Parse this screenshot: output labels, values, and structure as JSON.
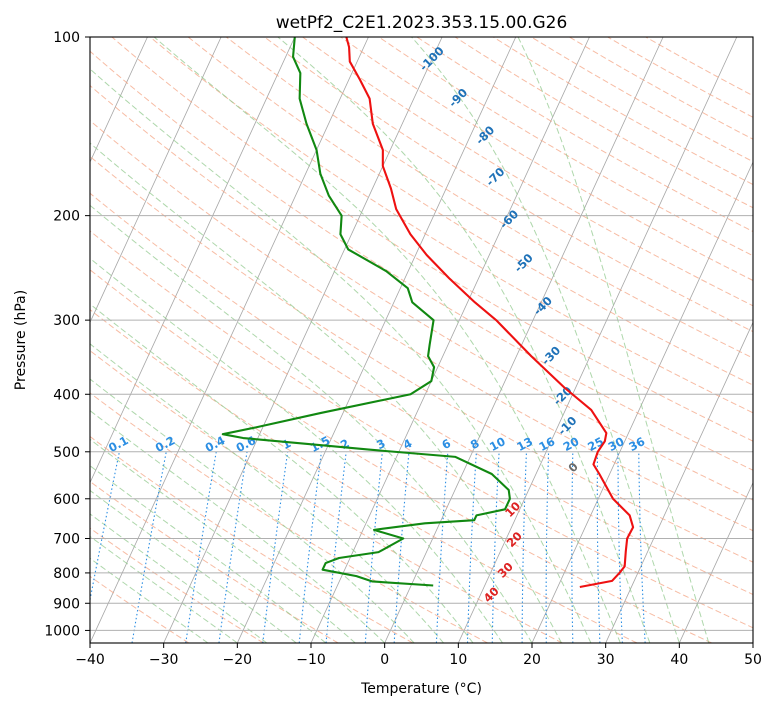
{
  "chart_data": {
    "type": "line",
    "title": "wetPf2_C2E1.2023.353.15.00.G26",
    "xlabel": "Temperature (°C)",
    "ylabel": "Pressure (hPa)",
    "xlim": [
      -40,
      50
    ],
    "ylim": [
      1050,
      100
    ],
    "y_scale": "log",
    "x_ticks": [
      "−40",
      "−30",
      "−20",
      "−10",
      "0",
      "10",
      "20",
      "30",
      "40",
      "50"
    ],
    "y_ticks": [
      1000,
      900,
      800,
      700,
      600,
      500,
      400,
      300,
      200,
      100
    ],
    "grid": true,
    "colors": {
      "temperature": "#ee1111",
      "dewpoint": "#118811",
      "dry_adiabat": "#f4a07e",
      "moist_adiabat": "#93c98f",
      "isotherm": "#888888",
      "mixing_ratio": "#2b8ee3",
      "dry_label": "#1f72b8",
      "mixing_label": "#2b8ee3",
      "moist_label": "#dd2222",
      "grid": "#b0b0b0"
    },
    "series": [
      {
        "key": "temperature",
        "points": [
          [
            23.0,
            845
          ],
          [
            27.0,
            825
          ],
          [
            27.5,
            800
          ],
          [
            27.8,
            780
          ],
          [
            27.0,
            735
          ],
          [
            26.4,
            700
          ],
          [
            26.5,
            670
          ],
          [
            25.3,
            640
          ],
          [
            22.0,
            600
          ],
          [
            18.6,
            545
          ],
          [
            17.2,
            525
          ],
          [
            17.0,
            500
          ],
          [
            17.3,
            480
          ],
          [
            17.0,
            465
          ],
          [
            13.5,
            425
          ],
          [
            8.5,
            390
          ],
          [
            2.0,
            345
          ],
          [
            -5.0,
            300
          ],
          [
            -9.0,
            280
          ],
          [
            -14.0,
            255
          ],
          [
            -18.5,
            233
          ],
          [
            -22.0,
            215
          ],
          [
            -25.5,
            195
          ],
          [
            -27.5,
            180
          ],
          [
            -30.0,
            165
          ],
          [
            -31.0,
            155
          ],
          [
            -34.0,
            140
          ],
          [
            -36.0,
            127
          ],
          [
            -38.5,
            118
          ],
          [
            -41.0,
            110
          ],
          [
            -42.0,
            104
          ],
          [
            -43.0,
            100
          ]
        ]
      },
      {
        "key": "dewpoint",
        "points": [
          [
            3.0,
            840
          ],
          [
            -5.5,
            827
          ],
          [
            -8.0,
            810
          ],
          [
            -13.0,
            790
          ],
          [
            -13.0,
            770
          ],
          [
            -11.5,
            755
          ],
          [
            -6.5,
            738
          ],
          [
            -4.0,
            700
          ],
          [
            -8.5,
            677
          ],
          [
            -2.0,
            660
          ],
          [
            4.5,
            652
          ],
          [
            4.5,
            640
          ],
          [
            8.0,
            625
          ],
          [
            8.0,
            600
          ],
          [
            7.3,
            580
          ],
          [
            4.0,
            545
          ],
          [
            -2.0,
            510
          ],
          [
            -14.0,
            496
          ],
          [
            -32.0,
            474
          ],
          [
            -35.0,
            467
          ],
          [
            -31.0,
            455
          ],
          [
            -23.0,
            430
          ],
          [
            -12.0,
            400
          ],
          [
            -10.0,
            380
          ],
          [
            -10.5,
            360
          ],
          [
            -12.0,
            345
          ],
          [
            -12.5,
            330
          ],
          [
            -13.5,
            300
          ],
          [
            -17.5,
            280
          ],
          [
            -19.0,
            265
          ],
          [
            -23.0,
            248
          ],
          [
            -29.5,
            228
          ],
          [
            -31.5,
            215
          ],
          [
            -32.5,
            200
          ],
          [
            -35.5,
            185
          ],
          [
            -38.0,
            170
          ],
          [
            -40.0,
            155
          ],
          [
            -43.0,
            140
          ],
          [
            -45.5,
            127
          ],
          [
            -47.0,
            115
          ],
          [
            -49.0,
            108
          ],
          [
            -50.0,
            100
          ]
        ]
      }
    ],
    "dry_adiabat_labels": [
      "-100",
      "-90",
      "-80",
      "-70",
      "-60",
      "-50",
      "-40",
      "-30",
      "-20",
      "-10",
      "0"
    ],
    "moist_adiabat_labels": [
      "10",
      "20",
      "30",
      "40"
    ],
    "mixing_ratio_labels": [
      "0.1",
      "0.2",
      "0.4",
      "0.6",
      "1",
      "1.5",
      "2",
      "3",
      "4",
      "6",
      "8",
      "10",
      "13",
      "16",
      "20",
      "25",
      "30",
      "36"
    ],
    "mixing_ratio_values": [
      0.1,
      0.2,
      0.4,
      0.6,
      1,
      1.5,
      2,
      3,
      4,
      6,
      8,
      10,
      13,
      16,
      20,
      25,
      30,
      36
    ]
  }
}
